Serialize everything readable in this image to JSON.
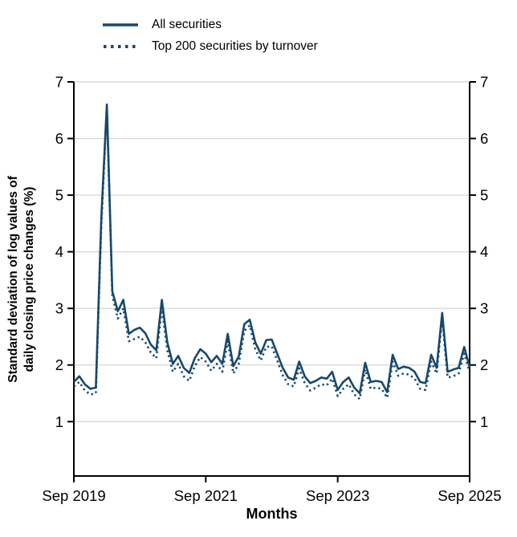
{
  "colors": {
    "series_line": "#17486d",
    "axis": "#000000",
    "grid": "#d9d9d9",
    "text": "#000000",
    "background": "#ffffff"
  },
  "legend": {
    "items": [
      {
        "label": "All securities",
        "style": "solid"
      },
      {
        "label": "Top 200 securities by turnover",
        "style": "dotted"
      }
    ]
  },
  "chart_data": {
    "type": "line",
    "title": "",
    "xlabel": "Months",
    "ylabel": "Standard deviation of log values of\ndaily closing price changes (%)",
    "x_frequency": "monthly",
    "x_range": [
      "Sep 2019",
      "Sep 2025"
    ],
    "x_tick_labels": [
      "Sep 2019",
      "Sep 2021",
      "Sep 2023",
      "Sep 2025"
    ],
    "x_tick_positions": [
      0,
      24,
      48,
      72
    ],
    "ylim": [
      0.04,
      7
    ],
    "yticks": [
      1,
      2,
      3,
      4,
      5,
      6,
      7
    ],
    "grid": true,
    "dual_y_axis": true,
    "legend_position": "top-left",
    "series": [
      {
        "name": "All securities",
        "style": "solid",
        "color": "#17486d",
        "values": [
          1.7,
          1.8,
          1.66,
          1.58,
          1.6,
          4.6,
          6.6,
          3.3,
          2.95,
          3.15,
          2.55,
          2.62,
          2.66,
          2.56,
          2.36,
          2.26,
          3.15,
          2.4,
          2.02,
          2.16,
          1.95,
          1.86,
          2.12,
          2.28,
          2.2,
          2.05,
          2.16,
          2.02,
          2.55,
          1.98,
          2.15,
          2.72,
          2.8,
          2.4,
          2.2,
          2.44,
          2.45,
          2.2,
          1.95,
          1.78,
          1.74,
          2.06,
          1.8,
          1.68,
          1.72,
          1.78,
          1.76,
          1.88,
          1.56,
          1.7,
          1.78,
          1.6,
          1.5,
          2.04,
          1.7,
          1.72,
          1.7,
          1.52,
          2.18,
          1.93,
          1.97,
          1.95,
          1.88,
          1.7,
          1.68,
          2.18,
          1.95,
          2.92,
          1.88,
          1.92,
          1.95,
          2.32,
          1.96
        ]
      },
      {
        "name": "Top 200 securities by turnover",
        "style": "dotted",
        "color": "#17486d",
        "values": [
          1.62,
          1.7,
          1.55,
          1.48,
          1.5,
          4.45,
          6.55,
          3.22,
          2.82,
          3.0,
          2.42,
          2.46,
          2.5,
          2.4,
          2.22,
          2.12,
          3.02,
          2.26,
          1.88,
          2.02,
          1.8,
          1.72,
          1.98,
          2.14,
          2.06,
          1.9,
          2.02,
          1.88,
          2.42,
          1.85,
          2.02,
          2.6,
          2.7,
          2.28,
          2.08,
          2.32,
          2.33,
          2.08,
          1.82,
          1.66,
          1.62,
          1.94,
          1.68,
          1.55,
          1.6,
          1.66,
          1.64,
          1.76,
          1.45,
          1.58,
          1.66,
          1.48,
          1.4,
          1.92,
          1.58,
          1.6,
          1.58,
          1.42,
          2.06,
          1.81,
          1.85,
          1.83,
          1.76,
          1.58,
          1.56,
          2.06,
          1.85,
          2.82,
          1.78,
          1.8,
          1.85,
          2.2,
          1.88
        ]
      }
    ]
  }
}
